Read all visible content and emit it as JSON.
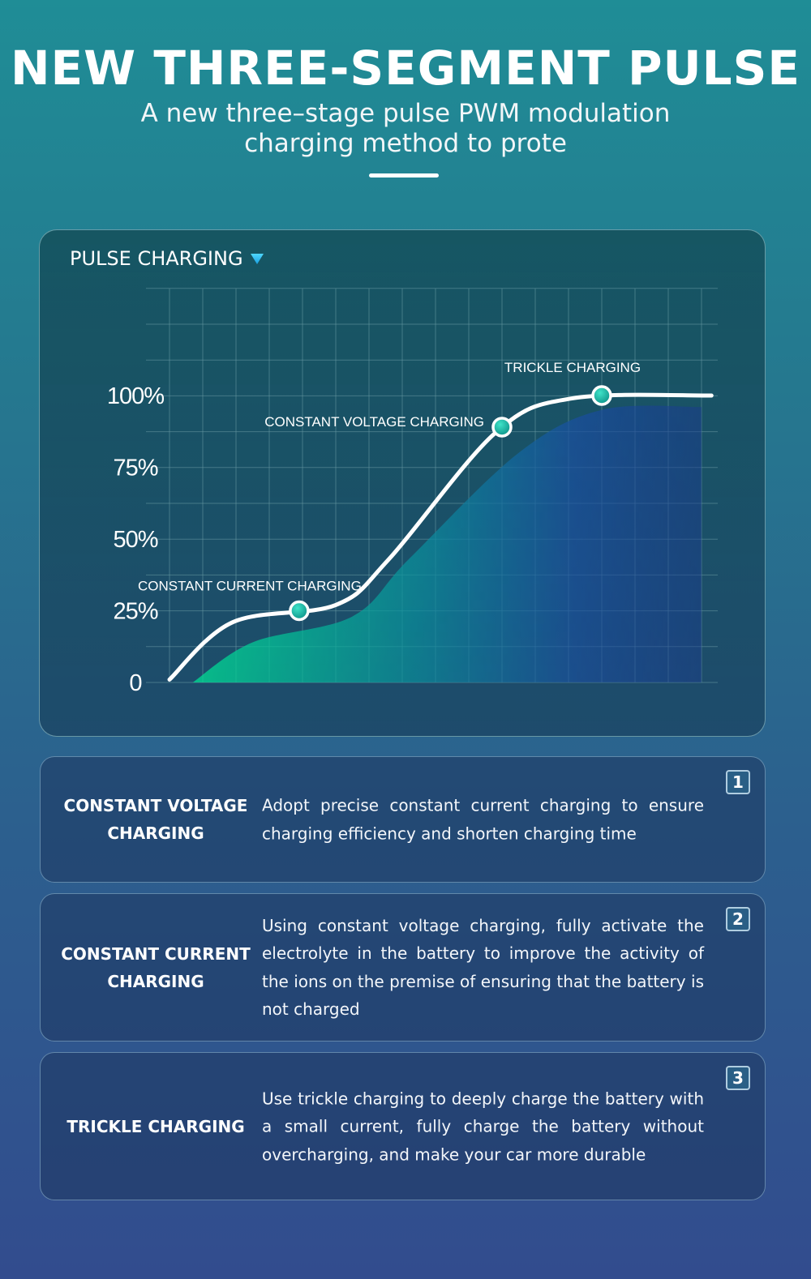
{
  "header": {
    "title": "NEW THREE-SEGMENT PULSE",
    "subtitle": "A new three–stage pulse PWM modulation charging method to prote"
  },
  "chart_data": {
    "type": "line",
    "title": "PULSE CHARGING",
    "xlabel": "",
    "ylabel": "",
    "ylim": [
      0,
      100
    ],
    "y_tick_labels": [
      "0",
      "25%",
      "50%",
      "75%",
      "100%"
    ],
    "y_ticks": [
      0,
      25,
      50,
      75,
      100
    ],
    "grid": true,
    "series": [
      {
        "x": [
          0,
          1.9,
          5,
          6.6,
          9.8,
          12.1,
          16.3
        ],
        "values": [
          1,
          21,
          27,
          43,
          87,
          99,
          100
        ]
      }
    ],
    "area_series": {
      "x": [
        0.7,
        2.5,
        5.5,
        7.2,
        10.5,
        13.0,
        16.0
      ],
      "values": [
        0,
        14,
        23,
        43,
        80,
        95,
        96
      ]
    },
    "annotations": [
      {
        "label": "CONSTANT CURRENT CHARGING",
        "x": 3.9,
        "y": 25
      },
      {
        "label": "CONSTANT VOLTAGE CHARGING",
        "x": 10.0,
        "y": 89
      },
      {
        "label": "TRICKLE CHARGING",
        "x": 13.0,
        "y": 100
      }
    ],
    "colors": {
      "line": "#ffffff",
      "marker": "#11b6a2",
      "area_start": "#00e294",
      "area_end": "#1a3a8f",
      "grid": "#6a9aa4"
    }
  },
  "cards": [
    {
      "label": "CONSTANT VOLTAGE CHARGING",
      "text": "Adopt precise constant current charging to ensure charging efficiency and shorten charging time",
      "badge": "1"
    },
    {
      "label": "CONSTANT CURRENT CHARGING",
      "text": "Using constant voltage charging, fully activate the electrolyte in the battery to improve the activity of the ions on the premise of ensuring that the bat­tery is not charged",
      "badge": "2"
    },
    {
      "label": "TRICKLE CHARGING",
      "text": "Use trickle charging to deeply charge the battery with a small current, fully charge the battery with­out overcharging, and make your car more durable",
      "badge": "3"
    }
  ]
}
